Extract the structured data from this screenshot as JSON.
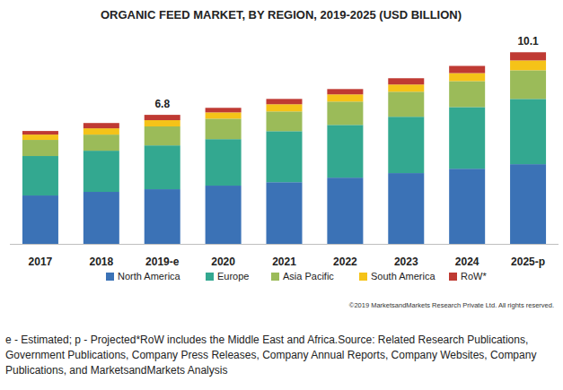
{
  "chart_data": {
    "type": "bar",
    "stacked": true,
    "title": "ORGANIC FEED MARKET, BY REGION, 2019-2025 (USD BILLION)",
    "categories": [
      "2017",
      "2018",
      "2019-e",
      "2020",
      "2021",
      "2022",
      "2023",
      "2024",
      "2025-p"
    ],
    "series": [
      {
        "name": "North America",
        "color": "#3b72b6",
        "values": [
          2.55,
          2.74,
          2.88,
          3.07,
          3.25,
          3.49,
          3.73,
          3.96,
          4.2
        ]
      },
      {
        "name": "Europe",
        "color": "#33a890",
        "values": [
          2.08,
          2.17,
          2.31,
          2.45,
          2.69,
          2.78,
          2.97,
          3.25,
          3.44
        ]
      },
      {
        "name": "Asia Pacific",
        "color": "#9bbb59",
        "values": [
          0.85,
          0.85,
          1.0,
          1.08,
          1.04,
          1.23,
          1.32,
          1.37,
          1.51
        ]
      },
      {
        "name": "South America",
        "color": "#f5c318",
        "values": [
          0.28,
          0.33,
          0.33,
          0.33,
          0.38,
          0.38,
          0.38,
          0.42,
          0.52
        ]
      },
      {
        "name": "RoW*",
        "color": "#bf3a33",
        "values": [
          0.19,
          0.28,
          0.28,
          0.24,
          0.28,
          0.28,
          0.33,
          0.38,
          0.43
        ]
      }
    ],
    "annotations": [
      {
        "category": "2019-e",
        "value": 6.8,
        "label": "6.8"
      },
      {
        "category": "2025-p",
        "value": 10.1,
        "label": "10.1"
      }
    ],
    "ylim": [
      0,
      11.2
    ],
    "tick_labels": "x",
    "grid": false,
    "legend": "bottom",
    "copyright": "©2019 MarketsandMarkets Research Private Ltd. All rights reserved.",
    "footnote": "e - Estimated; p - Projected*RoW includes the Middle East and Africa.Source: Related Research Publications, Government Publications, Company Press Releases, Company Annual Reports, Company Websites, Company Publications, and MarketsandMarkets Analysis"
  }
}
